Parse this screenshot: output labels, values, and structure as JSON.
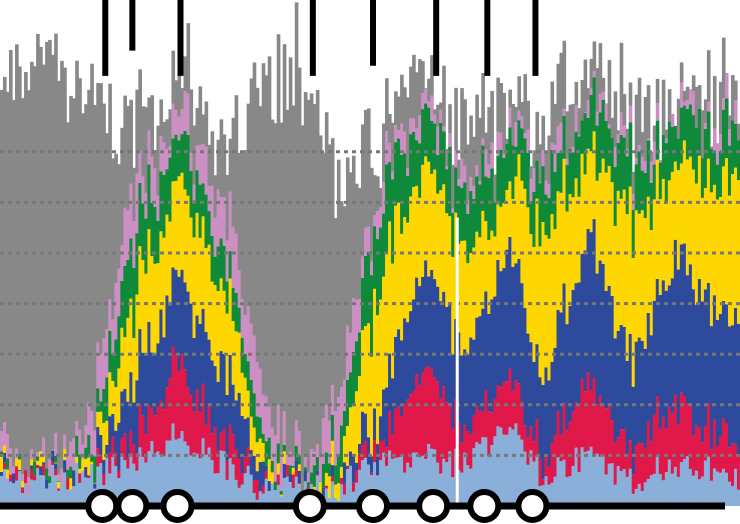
{
  "chart_data": {
    "type": "bar",
    "stacked": true,
    "title": "",
    "xlabel": "",
    "ylabel": "",
    "ylim": [
      0,
      100
    ],
    "gridlines_y": [
      10,
      20,
      30,
      40,
      50,
      60,
      70
    ],
    "grid": true,
    "legend": "none",
    "n_bars": 246,
    "series": [
      {
        "name": "",
        "color": "#8aafd9"
      },
      {
        "name": "",
        "color": "#e0194a"
      },
      {
        "name": "",
        "color": "#2e4a9c"
      },
      {
        "name": "",
        "color": "#ffd700"
      },
      {
        "name": "",
        "color": "#0f8a3a"
      },
      {
        "name": "",
        "color": "#cc8fc4"
      },
      {
        "name": "",
        "color": "#888888"
      }
    ],
    "profile_keypoints": [
      {
        "i": 0,
        "c": [
          5,
          0,
          0,
          0,
          0,
          3,
          72
        ]
      },
      {
        "i": 15,
        "c": [
          5,
          0,
          0,
          0,
          0,
          1,
          80
        ]
      },
      {
        "i": 30,
        "c": [
          6,
          0,
          1,
          1,
          2,
          6,
          62
        ]
      },
      {
        "i": 42,
        "c": [
          9,
          4,
          10,
          14,
          12,
          10,
          14
        ]
      },
      {
        "i": 58,
        "c": [
          14,
          14,
          18,
          20,
          10,
          4,
          6
        ]
      },
      {
        "i": 75,
        "c": [
          8,
          5,
          14,
          14,
          8,
          10,
          12
        ]
      },
      {
        "i": 88,
        "c": [
          3,
          0,
          1,
          2,
          2,
          8,
          64
        ]
      },
      {
        "i": 100,
        "c": [
          3,
          0,
          0,
          0,
          0,
          2,
          80
        ]
      },
      {
        "i": 112,
        "c": [
          4,
          0,
          1,
          3,
          6,
          10,
          42
        ]
      },
      {
        "i": 125,
        "c": [
          8,
          2,
          6,
          26,
          16,
          4,
          10
        ]
      },
      {
        "i": 140,
        "c": [
          10,
          18,
          20,
          20,
          10,
          3,
          6
        ]
      },
      {
        "i": 155,
        "c": [
          8,
          5,
          16,
          20,
          12,
          3,
          8
        ]
      },
      {
        "i": 168,
        "c": [
          16,
          12,
          26,
          12,
          8,
          2,
          6
        ]
      },
      {
        "i": 180,
        "c": [
          6,
          4,
          16,
          30,
          10,
          3,
          8
        ]
      },
      {
        "i": 196,
        "c": [
          10,
          14,
          30,
          15,
          9,
          2,
          6
        ]
      },
      {
        "i": 208,
        "c": [
          5,
          6,
          18,
          28,
          11,
          2,
          7
        ]
      },
      {
        "i": 224,
        "c": [
          8,
          12,
          28,
          18,
          9,
          2,
          5
        ]
      },
      {
        "i": 245,
        "c": [
          6,
          6,
          24,
          28,
          10,
          2,
          6
        ]
      }
    ],
    "spike_lines": [
      {
        "x": 35,
        "to": 85
      },
      {
        "x": 44,
        "to": 90
      },
      {
        "x": 60,
        "to": 85
      },
      {
        "x": 104,
        "to": 85
      },
      {
        "x": 124,
        "to": 87
      },
      {
        "x": 145,
        "to": 85
      },
      {
        "x": 162,
        "to": 85
      },
      {
        "x": 178,
        "to": 85
      }
    ],
    "markers": [
      34,
      44,
      59,
      103,
      124,
      144,
      161,
      177
    ],
    "white_line_at": 152
  }
}
